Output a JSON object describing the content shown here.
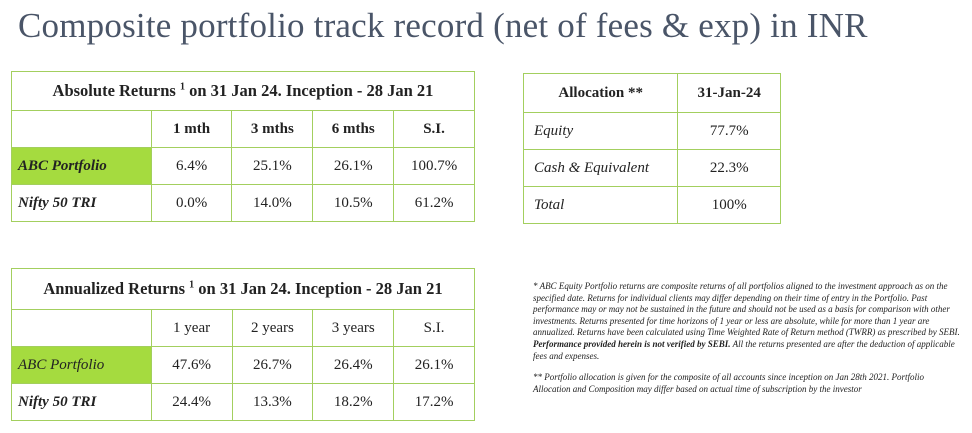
{
  "title": "Composite portfolio track record (net of fees & exp) in INR",
  "absolute": {
    "caption": "Absolute Returns",
    "sup": "1",
    "caption_rest": " on 31 Jan 24. Inception - 28 Jan 21",
    "headers": [
      "1 mth",
      "3 mths",
      "6 mths",
      "S.I."
    ],
    "rows": [
      {
        "label": "ABC Portfolio",
        "values": [
          "6.4%",
          "25.1%",
          "26.1%",
          "100.7%"
        ]
      },
      {
        "label": "Nifty 50 TRI",
        "values": [
          "0.0%",
          "14.0%",
          "10.5%",
          "61.2%"
        ]
      }
    ]
  },
  "annualized": {
    "caption": "Annualized Returns",
    "sup": "1",
    "caption_rest": " on 31 Jan 24. Inception - 28 Jan 21",
    "headers": [
      "1 year",
      "2 years",
      "3 years",
      "S.I."
    ],
    "rows": [
      {
        "label": "ABC Portfolio",
        "values": [
          "47.6%",
          "26.7%",
          "26.4%",
          "26.1%"
        ]
      },
      {
        "label": "Nifty 50 TRI",
        "values": [
          "24.4%",
          "13.3%",
          "18.2%",
          "17.2%"
        ]
      }
    ]
  },
  "allocation": {
    "header_label": "Allocation **",
    "header_date": "31-Jan-24",
    "rows": [
      {
        "label": "Equity",
        "value": "77.7%"
      },
      {
        "label": "Cash & Equivalent",
        "value": "22.3%"
      },
      {
        "label": "Total",
        "value": "100%"
      }
    ]
  },
  "notes": {
    "note1_a": "* ABC  Equity Portfolio  returns are composite returns of all portfolios aligned to the investment approach as on the specified date. Returns for individual clients may differ depending on their time of entry in the Portfolio. Past performance may or may not be sustained in the future and should not be used as a basis for comparison with other investments. Returns presented for time horizons of 1 year or less are absolute, while for more than 1 year are annualized. Returns have been calculated using Time Weighted Rate of Return method (TWRR) as prescribed by SEBI. ",
    "note1_bold": "Performance provided herein is not verified by SEBI.",
    "note1_b": " All the returns presented are after the deduction of applicable fees and expenses.",
    "note2": "** Portfolio allocation is given for the composite of all accounts since inception on Jan 28th 2021. Portfolio Allocation and Composition may differ based on actual time of subscription by the investor"
  }
}
